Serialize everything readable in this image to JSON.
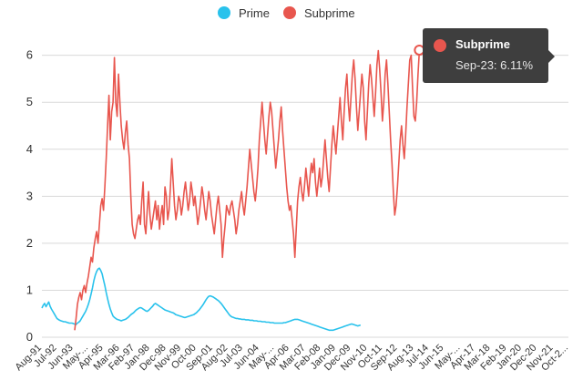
{
  "chart_data": {
    "type": "line",
    "title": "",
    "xlabel": "",
    "ylabel": "",
    "ylim": [
      0,
      6.4
    ],
    "yticks": [
      0,
      1,
      2,
      3,
      4,
      5,
      6
    ],
    "x_start_label": "Aug-91",
    "x_end_label": "Oct-23",
    "total_months": 386,
    "tick_labels": [
      "Aug-91",
      "Jul-92",
      "Jun-93",
      "May-...",
      "Apr-95",
      "Mar-96",
      "Feb-97",
      "Jan-98",
      "Dec-98",
      "Nov-99",
      "Oct-00",
      "Sep-01",
      "Aug-02",
      "Jul-03",
      "Jun-04",
      "May-...",
      "Apr-06",
      "Mar-07",
      "Feb-08",
      "Jan-09",
      "Dec-09",
      "Nov-10",
      "Oct-11",
      "Sep-12",
      "Aug-13",
      "Jul-14",
      "Jun-15",
      "May-...",
      "Apr-17",
      "Mar-18",
      "Feb-19",
      "Jan-20",
      "Dec-20",
      "Nov-21",
      "Oct-2..."
    ],
    "legend_position": "top-center",
    "series": [
      {
        "name": "Prime",
        "color": "#29c2ec",
        "start_month_index": 0,
        "values": [
          0.62,
          0.68,
          0.72,
          0.65,
          0.7,
          0.75,
          0.66,
          0.6,
          0.55,
          0.5,
          0.45,
          0.4,
          0.38,
          0.36,
          0.35,
          0.34,
          0.33,
          0.33,
          0.32,
          0.31,
          0.3,
          0.3,
          0.3,
          0.29,
          0.28,
          0.27,
          0.3,
          0.32,
          0.35,
          0.4,
          0.45,
          0.5,
          0.55,
          0.62,
          0.7,
          0.8,
          0.92,
          1.05,
          1.2,
          1.32,
          1.4,
          1.45,
          1.47,
          1.42,
          1.35,
          1.22,
          1.1,
          0.95,
          0.82,
          0.7,
          0.6,
          0.52,
          0.45,
          0.42,
          0.4,
          0.38,
          0.37,
          0.36,
          0.35,
          0.36,
          0.37,
          0.38,
          0.4,
          0.42,
          0.45,
          0.48,
          0.5,
          0.52,
          0.55,
          0.58,
          0.6,
          0.62,
          0.63,
          0.62,
          0.6,
          0.58,
          0.56,
          0.55,
          0.57,
          0.6,
          0.63,
          0.66,
          0.7,
          0.72,
          0.7,
          0.68,
          0.66,
          0.64,
          0.62,
          0.6,
          0.58,
          0.57,
          0.56,
          0.55,
          0.54,
          0.53,
          0.52,
          0.5,
          0.48,
          0.47,
          0.46,
          0.45,
          0.44,
          0.43,
          0.42,
          0.42,
          0.43,
          0.44,
          0.45,
          0.46,
          0.47,
          0.48,
          0.5,
          0.52,
          0.55,
          0.58,
          0.62,
          0.66,
          0.7,
          0.75,
          0.8,
          0.84,
          0.87,
          0.88,
          0.87,
          0.86,
          0.84,
          0.82,
          0.8,
          0.78,
          0.75,
          0.72,
          0.68,
          0.64,
          0.6,
          0.56,
          0.52,
          0.48,
          0.45,
          0.43,
          0.42,
          0.41,
          0.4,
          0.4,
          0.39,
          0.39,
          0.38,
          0.38,
          0.38,
          0.37,
          0.37,
          0.37,
          0.36,
          0.36,
          0.36,
          0.35,
          0.35,
          0.35,
          0.34,
          0.34,
          0.34,
          0.33,
          0.33,
          0.33,
          0.32,
          0.32,
          0.32,
          0.31,
          0.31,
          0.31,
          0.3,
          0.3,
          0.3,
          0.3,
          0.3,
          0.3,
          0.3,
          0.31,
          0.31,
          0.32,
          0.33,
          0.34,
          0.35,
          0.36,
          0.37,
          0.38,
          0.38,
          0.38,
          0.37,
          0.36,
          0.35,
          0.34,
          0.33,
          0.32,
          0.31,
          0.3,
          0.29,
          0.28,
          0.27,
          0.26,
          0.25,
          0.24,
          0.23,
          0.22,
          0.21,
          0.2,
          0.19,
          0.18,
          0.17,
          0.16,
          0.15,
          0.15,
          0.15,
          0.15,
          0.16,
          0.17,
          0.18,
          0.19,
          0.2,
          0.21,
          0.22,
          0.23,
          0.24,
          0.25,
          0.26,
          0.27,
          0.28,
          0.28,
          0.27,
          0.26,
          0.25,
          0.24,
          0.25,
          0.26
        ]
      },
      {
        "name": "Subprime",
        "color": "#e8564e",
        "start_month_index": 24,
        "values": [
          0.15,
          0.4,
          0.7,
          0.85,
          0.95,
          0.8,
          1.0,
          1.1,
          0.95,
          1.15,
          1.3,
          1.5,
          1.7,
          1.6,
          1.9,
          2.1,
          2.25,
          2.0,
          2.4,
          2.8,
          2.95,
          2.7,
          3.2,
          3.8,
          4.5,
          5.15,
          4.2,
          4.8,
          5.0,
          5.95,
          5.0,
          4.7,
          5.6,
          5.0,
          4.5,
          4.2,
          4.0,
          4.35,
          4.6,
          4.1,
          3.8,
          3.0,
          2.4,
          2.2,
          2.1,
          2.3,
          2.5,
          2.6,
          2.4,
          2.9,
          3.3,
          2.4,
          2.2,
          2.7,
          3.1,
          2.6,
          2.3,
          2.5,
          2.7,
          2.9,
          2.5,
          2.8,
          2.3,
          2.6,
          2.8,
          2.4,
          3.2,
          3.0,
          2.5,
          2.7,
          3.2,
          3.8,
          3.3,
          2.8,
          2.5,
          2.7,
          3.0,
          2.9,
          2.6,
          2.8,
          3.1,
          3.3,
          3.0,
          2.7,
          2.9,
          3.3,
          3.1,
          2.8,
          3.0,
          2.7,
          2.4,
          2.6,
          2.9,
          3.2,
          3.0,
          2.7,
          2.5,
          2.8,
          3.1,
          2.9,
          2.6,
          2.4,
          2.2,
          2.5,
          2.8,
          3.0,
          2.7,
          2.4,
          1.7,
          2.1,
          2.4,
          2.8,
          2.7,
          2.6,
          2.8,
          2.9,
          2.7,
          2.5,
          2.2,
          2.4,
          2.7,
          2.9,
          3.1,
          2.8,
          2.6,
          2.9,
          3.2,
          3.6,
          4.0,
          3.7,
          3.4,
          3.1,
          2.9,
          3.2,
          3.6,
          4.2,
          4.6,
          5.0,
          4.6,
          4.2,
          3.9,
          4.3,
          4.7,
          5.0,
          4.8,
          4.4,
          4.0,
          3.6,
          3.9,
          4.2,
          4.6,
          4.9,
          4.4,
          4.0,
          3.6,
          3.2,
          2.9,
          2.7,
          2.8,
          2.5,
          2.2,
          1.7,
          2.3,
          2.9,
          3.2,
          3.4,
          3.1,
          2.9,
          3.2,
          3.6,
          3.3,
          3.0,
          3.4,
          3.7,
          3.5,
          3.8,
          3.3,
          3.0,
          3.3,
          3.6,
          3.2,
          3.4,
          3.8,
          4.2,
          3.8,
          3.4,
          3.1,
          3.6,
          4.1,
          4.5,
          4.2,
          3.9,
          4.3,
          4.7,
          5.1,
          4.6,
          4.2,
          4.8,
          5.3,
          5.6,
          5.0,
          4.6,
          5.1,
          5.6,
          5.9,
          5.5,
          4.9,
          4.4,
          4.8,
          5.2,
          5.6,
          5.3,
          4.6,
          4.2,
          4.8,
          5.4,
          5.8,
          5.5,
          5.1,
          4.7,
          5.2,
          5.8,
          6.1,
          5.7,
          5.2,
          4.6,
          5.0,
          5.6,
          5.9,
          5.4,
          4.8,
          4.2,
          3.7,
          3.1,
          2.6,
          2.8,
          3.2,
          3.7,
          4.2,
          4.5,
          4.1,
          3.8,
          4.3,
          4.9,
          5.4,
          5.9,
          6.0,
          5.3,
          4.7,
          4.6,
          5.0,
          5.6,
          6.11
        ]
      }
    ],
    "tooltip": {
      "series": "Subprime",
      "value_text": "Sep-23: 6.11%"
    }
  }
}
